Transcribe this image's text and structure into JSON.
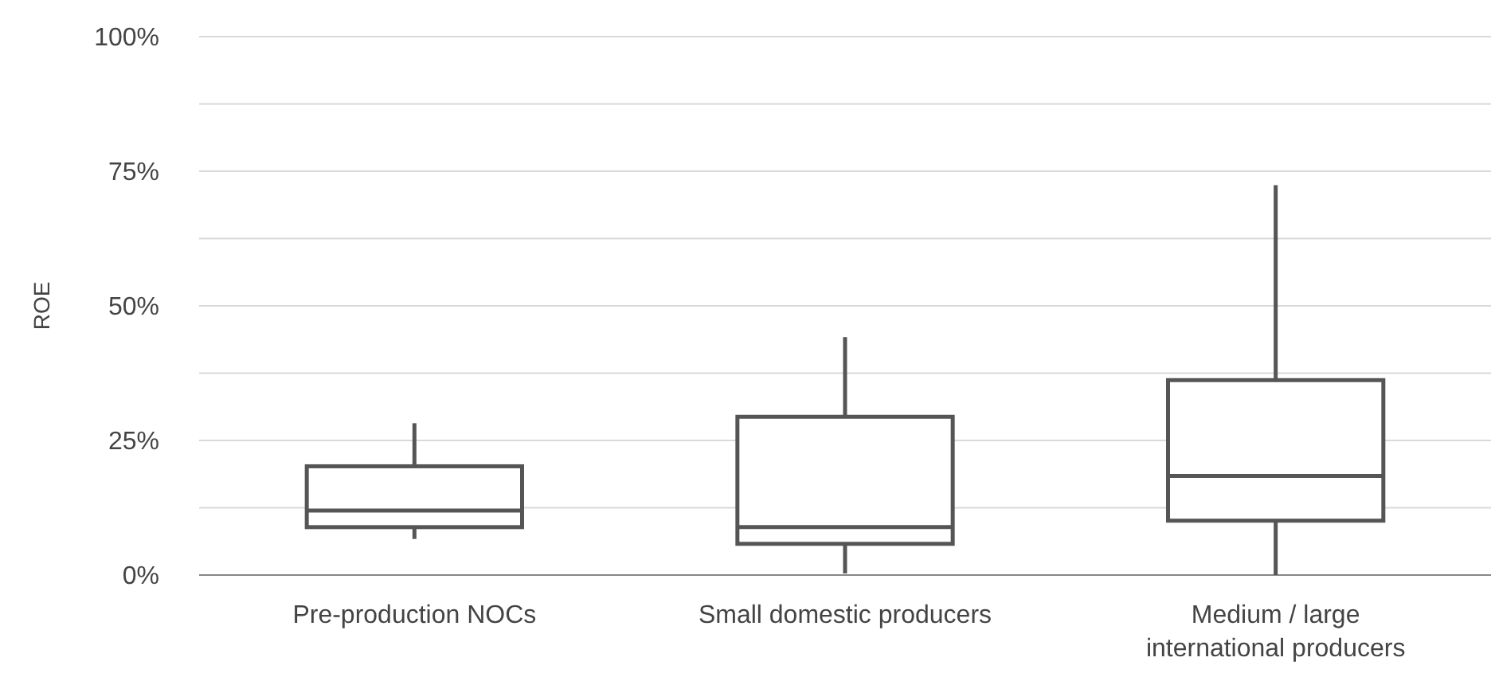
{
  "chart_data": {
    "type": "box",
    "ylabel": "ROE",
    "categories": [
      "Pre-production NOCs",
      "Small domestic producers",
      "Medium / large international producers"
    ],
    "boxes": [
      {
        "low": 6.7,
        "q1": 8.9,
        "median": 12,
        "q3": 20.2,
        "high": 28.2
      },
      {
        "low": 0.3,
        "q1": 5.8,
        "median": 8.9,
        "q3": 29.4,
        "high": 44.2
      },
      {
        "low": 0,
        "q1": 10.1,
        "median": 18.4,
        "q3": 36.2,
        "high": 72.4
      }
    ],
    "color": "#555555",
    "ylim": [
      0,
      100
    ],
    "yticks": [
      {
        "value": 0,
        "label": "0%"
      },
      {
        "value": 12.5,
        "label": null
      },
      {
        "value": 25,
        "label": "25%"
      },
      {
        "value": 37.5,
        "label": null
      },
      {
        "value": 50,
        "label": "50%"
      },
      {
        "value": 62.5,
        "label": null
      },
      {
        "value": 75,
        "label": "75%"
      },
      {
        "value": 87.5,
        "label": null
      },
      {
        "value": 100,
        "label": "100%"
      }
    ],
    "grid": "y"
  }
}
